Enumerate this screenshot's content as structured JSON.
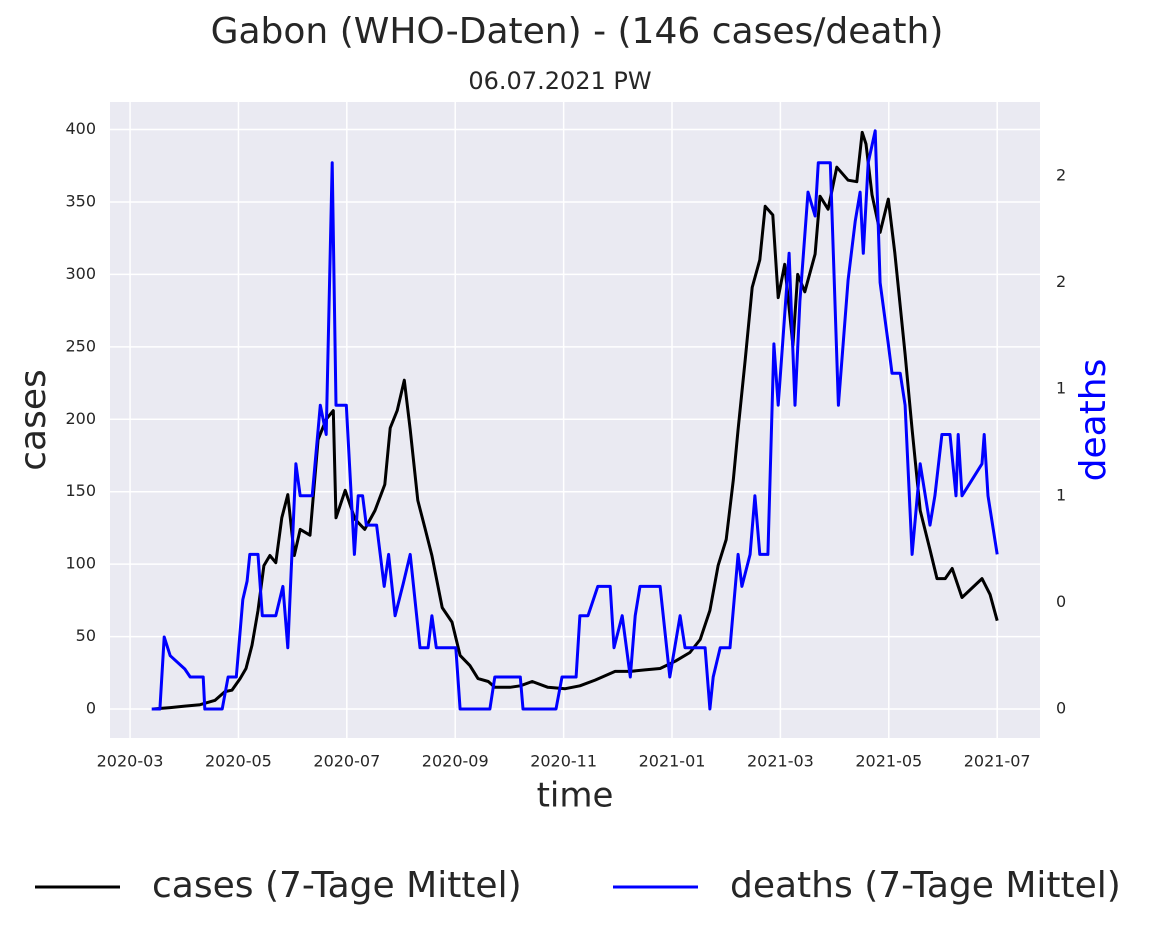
{
  "chart_data": {
    "type": "line",
    "title": "Gabon (WHO-Daten) - (146 cases/death)",
    "subtitle": "06.07.2021 PW",
    "x_label": "time",
    "y_label": "cases",
    "y2_label": "deaths",
    "grid": true,
    "xlim": [
      2.63,
      19.79
    ],
    "xticks": [
      {
        "value": 3,
        "label": "2020-03"
      },
      {
        "value": 5,
        "label": "2020-05"
      },
      {
        "value": 7,
        "label": "2020-07"
      },
      {
        "value": 9,
        "label": "2020-09"
      },
      {
        "value": 11,
        "label": "2020-11"
      },
      {
        "value": 13,
        "label": "2021-01"
      },
      {
        "value": 15,
        "label": "2021-03"
      },
      {
        "value": 17,
        "label": "2021-05"
      },
      {
        "value": 19,
        "label": "2021-07"
      }
    ],
    "ylim": [
      -20,
      419
    ],
    "yticks": [
      0,
      50,
      100,
      150,
      200,
      250,
      300,
      350,
      400
    ],
    "y2lim": [
      -0.109,
      2.278
    ],
    "y2ticks": [
      {
        "value": 0,
        "label": "0"
      },
      {
        "value": 0.4,
        "label": "0"
      },
      {
        "value": 0.8,
        "label": "1"
      },
      {
        "value": 1.2,
        "label": "1"
      },
      {
        "value": 1.6,
        "label": "2"
      },
      {
        "value": 2.0,
        "label": "2"
      }
    ],
    "y2_color": "#0000ff",
    "series": [
      {
        "name": "cases (7-Tage Mittel)",
        "color": "#000000",
        "x": [
          3.42,
          3.74,
          4.01,
          4.29,
          4.57,
          4.75,
          4.88,
          5.03,
          5.14,
          5.25,
          5.36,
          5.47,
          5.58,
          5.69,
          5.8,
          5.91,
          6.03,
          6.14,
          6.32,
          6.47,
          6.62,
          6.75,
          6.8,
          6.97,
          7.15,
          7.33,
          7.52,
          7.7,
          7.8,
          7.93,
          8.06,
          8.17,
          8.31,
          8.44,
          8.57,
          8.76,
          8.94,
          9.09,
          9.27,
          9.42,
          9.61,
          9.73,
          10.01,
          10.2,
          10.42,
          10.71,
          11.03,
          11.3,
          11.58,
          11.95,
          12.23,
          12.5,
          12.78,
          13.06,
          13.33,
          13.52,
          13.7,
          13.85,
          14.0,
          14.13,
          14.22,
          14.35,
          14.48,
          14.62,
          14.72,
          14.86,
          14.96,
          15.08,
          15.23,
          15.32,
          15.45,
          15.64,
          15.73,
          15.88,
          16.04,
          16.25,
          16.41,
          16.51,
          16.58,
          16.69,
          16.84,
          16.99,
          17.11,
          17.3,
          17.43,
          17.58,
          17.76,
          17.89,
          18.04,
          18.17,
          18.35,
          18.72,
          18.87,
          19.0
        ],
        "values": [
          0,
          1,
          2,
          3,
          6,
          12,
          13,
          21,
          28,
          44,
          68,
          99,
          106,
          101,
          132,
          148,
          106,
          124,
          120,
          186,
          200,
          206,
          132,
          151,
          131,
          124,
          137,
          155,
          194,
          206,
          227,
          193,
          144,
          125,
          106,
          70,
          60,
          37,
          30,
          21,
          19,
          15,
          15,
          16,
          19,
          15,
          14,
          16,
          20,
          26,
          26,
          27,
          28,
          33,
          39,
          48,
          68,
          99,
          117,
          158,
          193,
          241,
          291,
          310,
          347,
          341,
          284,
          307,
          251,
          300,
          288,
          314,
          354,
          345,
          374,
          365,
          364,
          398,
          390,
          355,
          329,
          352,
          315,
          245,
          193,
          137,
          110,
          90,
          90,
          97,
          77,
          90,
          79,
          61
        ]
      },
      {
        "name": "deaths (7-Tage Mittel)",
        "color": "#0000ff",
        "axis": "y2",
        "x": [
          3.4,
          3.55,
          3.63,
          3.74,
          4.01,
          4.11,
          4.35,
          4.38,
          4.7,
          4.81,
          4.96,
          5.08,
          5.16,
          5.21,
          5.36,
          5.44,
          5.69,
          5.82,
          5.91,
          6.06,
          6.14,
          6.36,
          6.51,
          6.62,
          6.73,
          6.8,
          6.99,
          7.14,
          7.21,
          7.29,
          7.36,
          7.55,
          7.69,
          7.77,
          7.89,
          8.04,
          8.17,
          8.35,
          8.5,
          8.57,
          8.65,
          9.01,
          9.09,
          9.64,
          9.73,
          10.2,
          10.25,
          10.86,
          10.97,
          11.23,
          11.3,
          11.45,
          11.63,
          11.86,
          11.93,
          12.08,
          12.23,
          12.32,
          12.41,
          12.78,
          12.96,
          13.15,
          13.24,
          13.61,
          13.7,
          13.76,
          13.89,
          14.07,
          14.22,
          14.29,
          14.44,
          14.53,
          14.62,
          14.77,
          14.88,
          14.96,
          15.16,
          15.27,
          15.36,
          15.51,
          15.64,
          15.7,
          15.92,
          16.07,
          16.25,
          16.38,
          16.47,
          16.53,
          16.62,
          16.75,
          16.84,
          16.99,
          17.06,
          17.21,
          17.3,
          17.43,
          17.58,
          17.76,
          17.85,
          17.98,
          18.13,
          18.24,
          18.28,
          18.35,
          18.72,
          18.76,
          18.83,
          19.0
        ],
        "values": [
          0,
          0,
          0.27,
          0.2,
          0.15,
          0.12,
          0.12,
          0,
          0,
          0.12,
          0.12,
          0.41,
          0.48,
          0.58,
          0.58,
          0.35,
          0.35,
          0.46,
          0.23,
          0.92,
          0.8,
          0.8,
          1.14,
          1.03,
          2.05,
          1.14,
          1.14,
          0.58,
          0.8,
          0.8,
          0.69,
          0.69,
          0.46,
          0.58,
          0.35,
          0.47,
          0.58,
          0.23,
          0.23,
          0.35,
          0.23,
          0.23,
          0,
          0,
          0.12,
          0.12,
          0,
          0,
          0.12,
          0.12,
          0.35,
          0.35,
          0.46,
          0.46,
          0.23,
          0.35,
          0.12,
          0.35,
          0.46,
          0.46,
          0.12,
          0.35,
          0.23,
          0.23,
          0,
          0.12,
          0.23,
          0.23,
          0.58,
          0.46,
          0.58,
          0.8,
          0.58,
          0.58,
          1.37,
          1.14,
          1.71,
          1.14,
          1.53,
          1.94,
          1.85,
          2.05,
          2.05,
          1.14,
          1.61,
          1.83,
          1.94,
          1.71,
          2.05,
          2.17,
          1.6,
          1.37,
          1.26,
          1.26,
          1.14,
          0.58,
          0.92,
          0.69,
          0.8,
          1.03,
          1.03,
          0.8,
          1.03,
          0.8,
          0.92,
          1.03,
          0.8,
          0.58
        ]
      }
    ]
  }
}
